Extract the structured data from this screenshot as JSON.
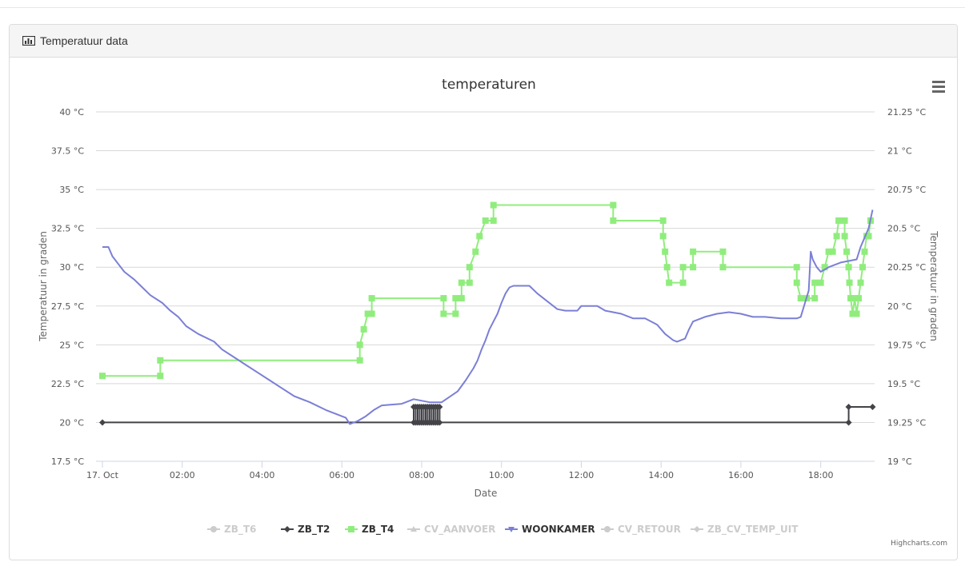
{
  "panel": {
    "title": "Temperatuur data",
    "icon": "bar-chart-icon"
  },
  "chart_data": {
    "type": "line",
    "title": "temperaturen",
    "xlabel": "Date",
    "ylabel_left": "Temperatuur in graden",
    "ylabel_right": "Temperatuur in graden",
    "x_ticks": [
      {
        "h": 0,
        "label": "17. Oct"
      },
      {
        "h": 2,
        "label": "02:00"
      },
      {
        "h": 4,
        "label": "04:00"
      },
      {
        "h": 6,
        "label": "06:00"
      },
      {
        "h": 8,
        "label": "08:00"
      },
      {
        "h": 10,
        "label": "10:00"
      },
      {
        "h": 12,
        "label": "12:00"
      },
      {
        "h": 14,
        "label": "14:00"
      },
      {
        "h": 16,
        "label": "16:00"
      },
      {
        "h": 18,
        "label": "18:00"
      }
    ],
    "xlim": [
      0,
      19.35
    ],
    "y_left": {
      "min": 17.5,
      "max": 40,
      "step": 2.5,
      "ticks": [
        "17.5 °C",
        "20 °C",
        "22.5 °C",
        "25 °C",
        "27.5 °C",
        "30 °C",
        "32.5 °C",
        "35 °C",
        "37.5 °C",
        "40 °C"
      ]
    },
    "y_right": {
      "min": 19,
      "max": 21.25,
      "step": 0.25,
      "ticks": [
        "19 °C",
        "19.25 °C",
        "19.5 °C",
        "19.75 °C",
        "20 °C",
        "20.25 °C",
        "20.5 °C",
        "20.75 °C",
        "21 °C",
        "21.25 °C"
      ]
    },
    "grid": true,
    "legend_position": "bottom-center",
    "credit": "Highcharts.com",
    "series": [
      {
        "name": "ZB_T6",
        "visible": false,
        "marker": "circle",
        "color": "#cccccc",
        "data": []
      },
      {
        "name": "ZB_T2",
        "visible": true,
        "marker": "diamond",
        "color": "#434348",
        "axis": "left",
        "data": [
          [
            0,
            20
          ],
          [
            7.8,
            20
          ],
          [
            7.8,
            21
          ],
          [
            7.85,
            21
          ],
          [
            7.85,
            20
          ],
          [
            7.9,
            20
          ],
          [
            7.9,
            21
          ],
          [
            7.95,
            21
          ],
          [
            7.95,
            20
          ],
          [
            8.0,
            20
          ],
          [
            8.0,
            21
          ],
          [
            8.05,
            21
          ],
          [
            8.05,
            20
          ],
          [
            8.1,
            20
          ],
          [
            8.1,
            21
          ],
          [
            8.15,
            21
          ],
          [
            8.15,
            20
          ],
          [
            8.2,
            20
          ],
          [
            8.2,
            21
          ],
          [
            8.25,
            21
          ],
          [
            8.25,
            20
          ],
          [
            8.3,
            20
          ],
          [
            8.3,
            21
          ],
          [
            8.35,
            21
          ],
          [
            8.35,
            20
          ],
          [
            8.4,
            20
          ],
          [
            8.4,
            21
          ],
          [
            8.45,
            21
          ],
          [
            8.45,
            20
          ],
          [
            18.7,
            20
          ],
          [
            18.7,
            21
          ],
          [
            19.3,
            21
          ]
        ]
      },
      {
        "name": "ZB_T4",
        "visible": true,
        "marker": "square",
        "color": "#90ed7d",
        "axis": "left",
        "data": [
          [
            0,
            23
          ],
          [
            1.45,
            23
          ],
          [
            1.45,
            24
          ],
          [
            6.45,
            24
          ],
          [
            6.45,
            25
          ],
          [
            6.55,
            26
          ],
          [
            6.65,
            27
          ],
          [
            6.75,
            27
          ],
          [
            6.75,
            28
          ],
          [
            8.55,
            28
          ],
          [
            8.55,
            27
          ],
          [
            8.85,
            27
          ],
          [
            8.85,
            28
          ],
          [
            9.0,
            28
          ],
          [
            9.0,
            29
          ],
          [
            9.2,
            29
          ],
          [
            9.2,
            30
          ],
          [
            9.35,
            31
          ],
          [
            9.45,
            32
          ],
          [
            9.6,
            33
          ],
          [
            9.8,
            33
          ],
          [
            9.8,
            34
          ],
          [
            12.8,
            34
          ],
          [
            12.8,
            33
          ],
          [
            14.05,
            33
          ],
          [
            14.05,
            32
          ],
          [
            14.1,
            31
          ],
          [
            14.15,
            30
          ],
          [
            14.2,
            29
          ],
          [
            14.55,
            29
          ],
          [
            14.55,
            30
          ],
          [
            14.8,
            30
          ],
          [
            14.8,
            31
          ],
          [
            15.55,
            31
          ],
          [
            15.55,
            30
          ],
          [
            17.4,
            30
          ],
          [
            17.4,
            29
          ],
          [
            17.5,
            28
          ],
          [
            17.65,
            28
          ],
          [
            17.85,
            28
          ],
          [
            17.85,
            29
          ],
          [
            18.0,
            29
          ],
          [
            18.1,
            30
          ],
          [
            18.2,
            31
          ],
          [
            18.3,
            31
          ],
          [
            18.4,
            32
          ],
          [
            18.45,
            33
          ],
          [
            18.6,
            33
          ],
          [
            18.6,
            32
          ],
          [
            18.65,
            31
          ],
          [
            18.7,
            30
          ],
          [
            18.72,
            29
          ],
          [
            18.75,
            28
          ],
          [
            18.8,
            27
          ],
          [
            18.85,
            28
          ],
          [
            18.9,
            27
          ],
          [
            18.95,
            28
          ],
          [
            19.0,
            29
          ],
          [
            19.05,
            30
          ],
          [
            19.1,
            31
          ],
          [
            19.15,
            32
          ],
          [
            19.2,
            32
          ],
          [
            19.25,
            33
          ]
        ]
      },
      {
        "name": "CV_AANVOER",
        "visible": false,
        "marker": "triangle",
        "color": "#cccccc",
        "data": []
      },
      {
        "name": "WOONKAMER",
        "visible": true,
        "marker": "triangle-down",
        "color": "#7b7fd6",
        "axis": "right",
        "data": [
          [
            0,
            20.38
          ],
          [
            0.15,
            20.38
          ],
          [
            0.25,
            20.32
          ],
          [
            0.4,
            20.27
          ],
          [
            0.55,
            20.22
          ],
          [
            0.8,
            20.17
          ],
          [
            1.0,
            20.12
          ],
          [
            1.2,
            20.07
          ],
          [
            1.5,
            20.02
          ],
          [
            1.7,
            19.97
          ],
          [
            1.9,
            19.93
          ],
          [
            2.1,
            19.87
          ],
          [
            2.4,
            19.82
          ],
          [
            2.8,
            19.77
          ],
          [
            3.0,
            19.72
          ],
          [
            3.3,
            19.67
          ],
          [
            3.6,
            19.62
          ],
          [
            3.9,
            19.57
          ],
          [
            4.2,
            19.52
          ],
          [
            4.5,
            19.47
          ],
          [
            4.8,
            19.42
          ],
          [
            5.2,
            19.38
          ],
          [
            5.6,
            19.33
          ],
          [
            5.9,
            19.3
          ],
          [
            6.1,
            19.28
          ],
          [
            6.2,
            19.24
          ],
          [
            6.4,
            19.26
          ],
          [
            6.6,
            19.29
          ],
          [
            6.8,
            19.33
          ],
          [
            7.0,
            19.36
          ],
          [
            7.5,
            19.37
          ],
          [
            7.8,
            19.4
          ],
          [
            8.2,
            19.38
          ],
          [
            8.5,
            19.38
          ],
          [
            8.9,
            19.45
          ],
          [
            9.1,
            19.52
          ],
          [
            9.3,
            19.6
          ],
          [
            9.4,
            19.65
          ],
          [
            9.5,
            19.72
          ],
          [
            9.6,
            19.78
          ],
          [
            9.7,
            19.85
          ],
          [
            9.8,
            19.9
          ],
          [
            9.9,
            19.95
          ],
          [
            10.0,
            20.02
          ],
          [
            10.1,
            20.08
          ],
          [
            10.2,
            20.12
          ],
          [
            10.3,
            20.13
          ],
          [
            10.7,
            20.13
          ],
          [
            10.9,
            20.08
          ],
          [
            11.2,
            20.02
          ],
          [
            11.4,
            19.98
          ],
          [
            11.6,
            19.97
          ],
          [
            11.9,
            19.97
          ],
          [
            12.0,
            20.0
          ],
          [
            12.4,
            20.0
          ],
          [
            12.6,
            19.97
          ],
          [
            13.0,
            19.95
          ],
          [
            13.3,
            19.92
          ],
          [
            13.6,
            19.92
          ],
          [
            13.9,
            19.88
          ],
          [
            14.1,
            19.82
          ],
          [
            14.3,
            19.78
          ],
          [
            14.4,
            19.77
          ],
          [
            14.6,
            19.79
          ],
          [
            14.7,
            19.85
          ],
          [
            14.8,
            19.9
          ],
          [
            15.1,
            19.93
          ],
          [
            15.4,
            19.95
          ],
          [
            15.7,
            19.96
          ],
          [
            16.0,
            19.95
          ],
          [
            16.3,
            19.93
          ],
          [
            16.6,
            19.93
          ],
          [
            17.0,
            19.92
          ],
          [
            17.4,
            19.92
          ],
          [
            17.5,
            19.93
          ],
          [
            17.7,
            20.1
          ],
          [
            17.75,
            20.35
          ],
          [
            17.8,
            20.3
          ],
          [
            17.9,
            20.25
          ],
          [
            18.0,
            20.22
          ],
          [
            18.2,
            20.25
          ],
          [
            18.5,
            20.28
          ],
          [
            18.9,
            20.3
          ],
          [
            19.0,
            20.38
          ],
          [
            19.2,
            20.5
          ],
          [
            19.3,
            20.62
          ]
        ]
      },
      {
        "name": "CV_RETOUR",
        "visible": false,
        "marker": "circle",
        "color": "#cccccc",
        "data": []
      },
      {
        "name": "ZB_CV_TEMP_UIT",
        "visible": false,
        "marker": "diamond",
        "color": "#cccccc",
        "data": []
      }
    ]
  }
}
